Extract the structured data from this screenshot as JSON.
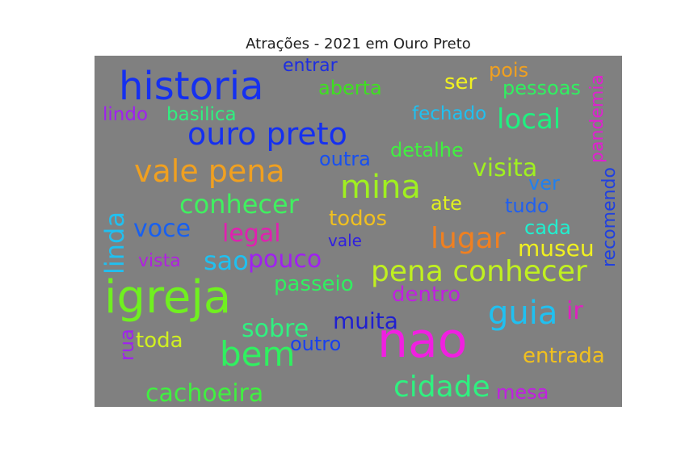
{
  "chart_data": {
    "type": "wordcloud",
    "title": "Atrações - 2021 em Ouro Preto",
    "background": "#808080",
    "words": [
      {
        "text": "historia",
        "color": "#1530f0"
      },
      {
        "text": "entrar",
        "color": "#1e2ee0"
      },
      {
        "text": "aberta",
        "color": "#3ee020"
      },
      {
        "text": "ser",
        "color": "#f0f020"
      },
      {
        "text": "pois",
        "color": "#f0a020"
      },
      {
        "text": "pessoas",
        "color": "#30f060"
      },
      {
        "text": "pandemia",
        "color": "#e020d0"
      },
      {
        "text": "lindo",
        "color": "#a020f0"
      },
      {
        "text": "basilica",
        "color": "#30f080"
      },
      {
        "text": "fechado",
        "color": "#20c0f0"
      },
      {
        "text": "local",
        "color": "#20f080"
      },
      {
        "text": "ouro preto",
        "color": "#1530f0"
      },
      {
        "text": "detalhe",
        "color": "#40f040"
      },
      {
        "text": "vale pena",
        "color": "#f0a020"
      },
      {
        "text": "outra",
        "color": "#1850f0"
      },
      {
        "text": "visita",
        "color": "#a0f020"
      },
      {
        "text": "mina",
        "color": "#a0f020"
      },
      {
        "text": "ver",
        "color": "#2080f0"
      },
      {
        "text": "recomendo",
        "color": "#2040e0"
      },
      {
        "text": "conhecer",
        "color": "#40f060"
      },
      {
        "text": "ate",
        "color": "#e0f020"
      },
      {
        "text": "tudo",
        "color": "#2060f0"
      },
      {
        "text": "linda",
        "color": "#20c0f0"
      },
      {
        "text": "voce",
        "color": "#1860f0"
      },
      {
        "text": "legal",
        "color": "#e020b0"
      },
      {
        "text": "todos",
        "color": "#f0c020"
      },
      {
        "text": "lugar",
        "color": "#f08020"
      },
      {
        "text": "cada",
        "color": "#20f0d0"
      },
      {
        "text": "vale",
        "color": "#3020e0"
      },
      {
        "text": "museu",
        "color": "#f0f020"
      },
      {
        "text": "vista",
        "color": "#b020e0"
      },
      {
        "text": "sao",
        "color": "#20c0f0"
      },
      {
        "text": "pouco",
        "color": "#a020f0"
      },
      {
        "text": "pena conhecer",
        "color": "#c0f020"
      },
      {
        "text": "igreja",
        "color": "#70f020"
      },
      {
        "text": "passeio",
        "color": "#30f060"
      },
      {
        "text": "dentro",
        "color": "#c020e0"
      },
      {
        "text": "guia",
        "color": "#20c0f0"
      },
      {
        "text": "ir",
        "color": "#e020c0"
      },
      {
        "text": "rua",
        "color": "#a020f0"
      },
      {
        "text": "muita",
        "color": "#2020d0"
      },
      {
        "text": "sobre",
        "color": "#30f080"
      },
      {
        "text": "toda",
        "color": "#d0f020"
      },
      {
        "text": "nao",
        "color": "#f020e0"
      },
      {
        "text": "bem",
        "color": "#30f060"
      },
      {
        "text": "outro",
        "color": "#1840f0"
      },
      {
        "text": "entrada",
        "color": "#f0c020"
      },
      {
        "text": "cidade",
        "color": "#30f080"
      },
      {
        "text": "cachoeira",
        "color": "#40f040"
      },
      {
        "text": "mesa",
        "color": "#c020e0"
      }
    ]
  }
}
